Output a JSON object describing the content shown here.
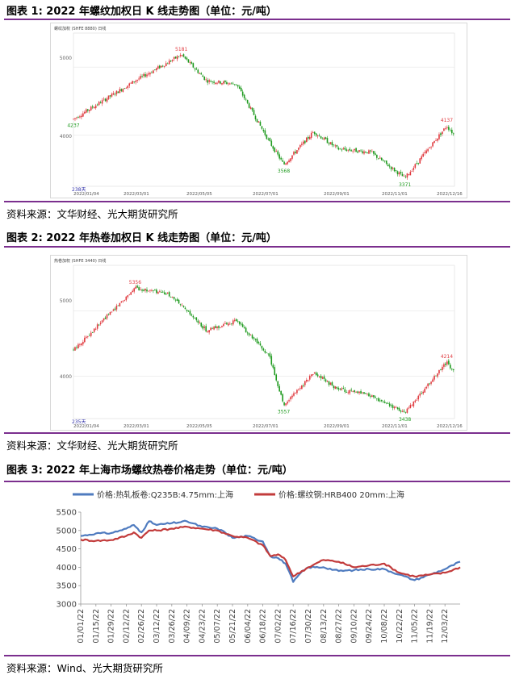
{
  "fig1": {
    "title": "图表 1: 2022 年螺纹加权日 K 线走势图（单位：元/吨）",
    "source": "资料来源：文华财经、光大期货研究所",
    "header": "螺纹加权 (SHFE 8880)  日线",
    "counter": "238天",
    "y_ticks": [
      "5000",
      "4000"
    ],
    "x_ticks": [
      "2022/01/04",
      "2022/03/01",
      "2022/05/05",
      "2022/07/01",
      "2022/09/01",
      "2022/11/01",
      "2022/12/16"
    ]
  },
  "fig2": {
    "title": "图表 2: 2022 年热卷加权日 K 线走势图（单位：元/吨）",
    "source": "资料来源：文华财经、光大期货研究所",
    "header": "热卷加权 (SHFE 3440)  日线",
    "counter": "235天",
    "y_ticks": [
      "5000",
      "4000"
    ],
    "x_ticks": [
      "2022/01/04",
      "2022/03/01",
      "2022/05/05",
      "2022/07/01",
      "2022/09/01",
      "2022/11/01",
      "2022/12/16"
    ]
  },
  "fig3": {
    "title": "图表 3: 2022 年上海市场螺纹热卷价格走势（单位：元/吨）",
    "source": "资料来源：Wind、光大期货研究所"
  },
  "chart_data": [
    {
      "type": "candlestick",
      "colors": {
        "up": "#e0393e",
        "down": "#1e9a1e"
      },
      "anchors": [
        {
          "date": "2022/01/04",
          "value": 4237,
          "label": "4237",
          "color": "#1e9a1e"
        },
        {
          "date": "2022/03/01",
          "value": 4800
        },
        {
          "date": "2022/04/12",
          "value": 5181,
          "label": "5181",
          "color": "#e0393e"
        },
        {
          "date": "2022/05/05",
          "value": 4800
        },
        {
          "date": "2022/06/01",
          "value": 4750
        },
        {
          "date": "2022/07/01",
          "value": 3900
        },
        {
          "date": "2022/07/14",
          "value": 3568,
          "label": "3568",
          "color": "#1e9a1e"
        },
        {
          "date": "2022/08/10",
          "value": 4050
        },
        {
          "date": "2022/09/01",
          "value": 3800
        },
        {
          "date": "2022/10/01",
          "value": 3750
        },
        {
          "date": "2022/11/01",
          "value": 3371,
          "label": "3371",
          "color": "#1e9a1e"
        },
        {
          "date": "2022/12/09",
          "value": 4137,
          "label": "4137",
          "color": "#e0393e"
        },
        {
          "date": "2022/12/16",
          "value": 4000
        }
      ],
      "ylim": [
        3250,
        5500
      ]
    },
    {
      "type": "candlestick",
      "colors": {
        "up": "#e0393e",
        "down": "#1e9a1e"
      },
      "anchors": [
        {
          "date": "2022/01/04",
          "value": 4400
        },
        {
          "date": "2022/03/01",
          "value": 5356,
          "label": "5356",
          "color": "#e0393e"
        },
        {
          "date": "2022/04/01",
          "value": 5250
        },
        {
          "date": "2022/05/05",
          "value": 4700
        },
        {
          "date": "2022/06/01",
          "value": 4850
        },
        {
          "date": "2022/07/01",
          "value": 4300
        },
        {
          "date": "2022/07/14",
          "value": 3557,
          "label": "3557",
          "color": "#1e9a1e"
        },
        {
          "date": "2022/08/10",
          "value": 4050
        },
        {
          "date": "2022/09/01",
          "value": 3800
        },
        {
          "date": "2022/10/01",
          "value": 3700
        },
        {
          "date": "2022/11/01",
          "value": 3438,
          "label": "3438",
          "color": "#1e9a1e"
        },
        {
          "date": "2022/12/09",
          "value": 4214,
          "label": "4214",
          "color": "#e0393e"
        },
        {
          "date": "2022/12/16",
          "value": 4050
        }
      ],
      "ylim": [
        3350,
        5700
      ]
    },
    {
      "type": "line",
      "legend_position": "top",
      "x_ticks": [
        "01/01/22",
        "01/15/22",
        "01/29/22",
        "02/12/22",
        "02/26/22",
        "03/12/22",
        "03/26/22",
        "04/09/22",
        "04/23/22",
        "05/07/22",
        "05/21/22",
        "06/04/22",
        "06/18/22",
        "07/02/22",
        "07/16/22",
        "07/30/22",
        "08/13/22",
        "08/27/22",
        "09/10/22",
        "09/24/22",
        "10/08/22",
        "10/22/22",
        "11/05/22",
        "11/19/22",
        "12/03/22"
      ],
      "y_ticks": [
        "5500",
        "5000",
        "4500",
        "4000",
        "3500",
        "3000"
      ],
      "ylim": [
        3000,
        5500
      ],
      "series": [
        {
          "name": "价格:热轧板卷:Q235B:4.75mm:上海",
          "color": "#4f7bbf",
          "points": [
            [
              "01/01/22",
              4850
            ],
            [
              "01/15/22",
              4920
            ],
            [
              "01/29/22",
              4930
            ],
            [
              "02/12/22",
              5050
            ],
            [
              "02/19/22",
              5150
            ],
            [
              "02/26/22",
              4950
            ],
            [
              "03/05/22",
              5250
            ],
            [
              "03/12/22",
              5150
            ],
            [
              "03/26/22",
              5200
            ],
            [
              "04/09/22",
              5250
            ],
            [
              "04/23/22",
              5100
            ],
            [
              "05/07/22",
              5050
            ],
            [
              "05/14/22",
              4950
            ],
            [
              "05/21/22",
              4800
            ],
            [
              "06/04/22",
              4850
            ],
            [
              "06/18/22",
              4700
            ],
            [
              "06/25/22",
              4300
            ],
            [
              "07/02/22",
              4250
            ],
            [
              "07/09/22",
              4100
            ],
            [
              "07/16/22",
              3600
            ],
            [
              "07/23/22",
              3850
            ],
            [
              "07/30/22",
              4000
            ],
            [
              "08/13/22",
              4000
            ],
            [
              "08/27/22",
              3900
            ],
            [
              "09/10/22",
              3920
            ],
            [
              "09/24/22",
              3950
            ],
            [
              "10/08/22",
              3950
            ],
            [
              "10/22/22",
              3800
            ],
            [
              "11/05/22",
              3650
            ],
            [
              "11/19/22",
              3800
            ],
            [
              "12/03/22",
              3950
            ],
            [
              "12/17/22",
              4150
            ]
          ]
        },
        {
          "name": "价格:螺纹钢:HRB400 20mm:上海",
          "color": "#c23b3b",
          "points": [
            [
              "01/01/22",
              4750
            ],
            [
              "01/15/22",
              4720
            ],
            [
              "01/29/22",
              4740
            ],
            [
              "02/12/22",
              4850
            ],
            [
              "02/19/22",
              4950
            ],
            [
              "02/26/22",
              4800
            ],
            [
              "03/05/22",
              5000
            ],
            [
              "03/12/22",
              5000
            ],
            [
              "03/26/22",
              5050
            ],
            [
              "04/09/22",
              5100
            ],
            [
              "04/23/22",
              5050
            ],
            [
              "05/07/22",
              5000
            ],
            [
              "05/21/22",
              4850
            ],
            [
              "06/04/22",
              4800
            ],
            [
              "06/18/22",
              4600
            ],
            [
              "06/25/22",
              4300
            ],
            [
              "07/02/22",
              4350
            ],
            [
              "07/09/22",
              4200
            ],
            [
              "07/16/22",
              3750
            ],
            [
              "07/30/22",
              4000
            ],
            [
              "08/13/22",
              4200
            ],
            [
              "08/27/22",
              4150
            ],
            [
              "09/10/22",
              4000
            ],
            [
              "09/24/22",
              4050
            ],
            [
              "10/08/22",
              4100
            ],
            [
              "10/22/22",
              3850
            ],
            [
              "11/05/22",
              3750
            ],
            [
              "11/19/22",
              3800
            ],
            [
              "12/03/22",
              3850
            ],
            [
              "12/17/22",
              4000
            ]
          ]
        }
      ]
    }
  ]
}
